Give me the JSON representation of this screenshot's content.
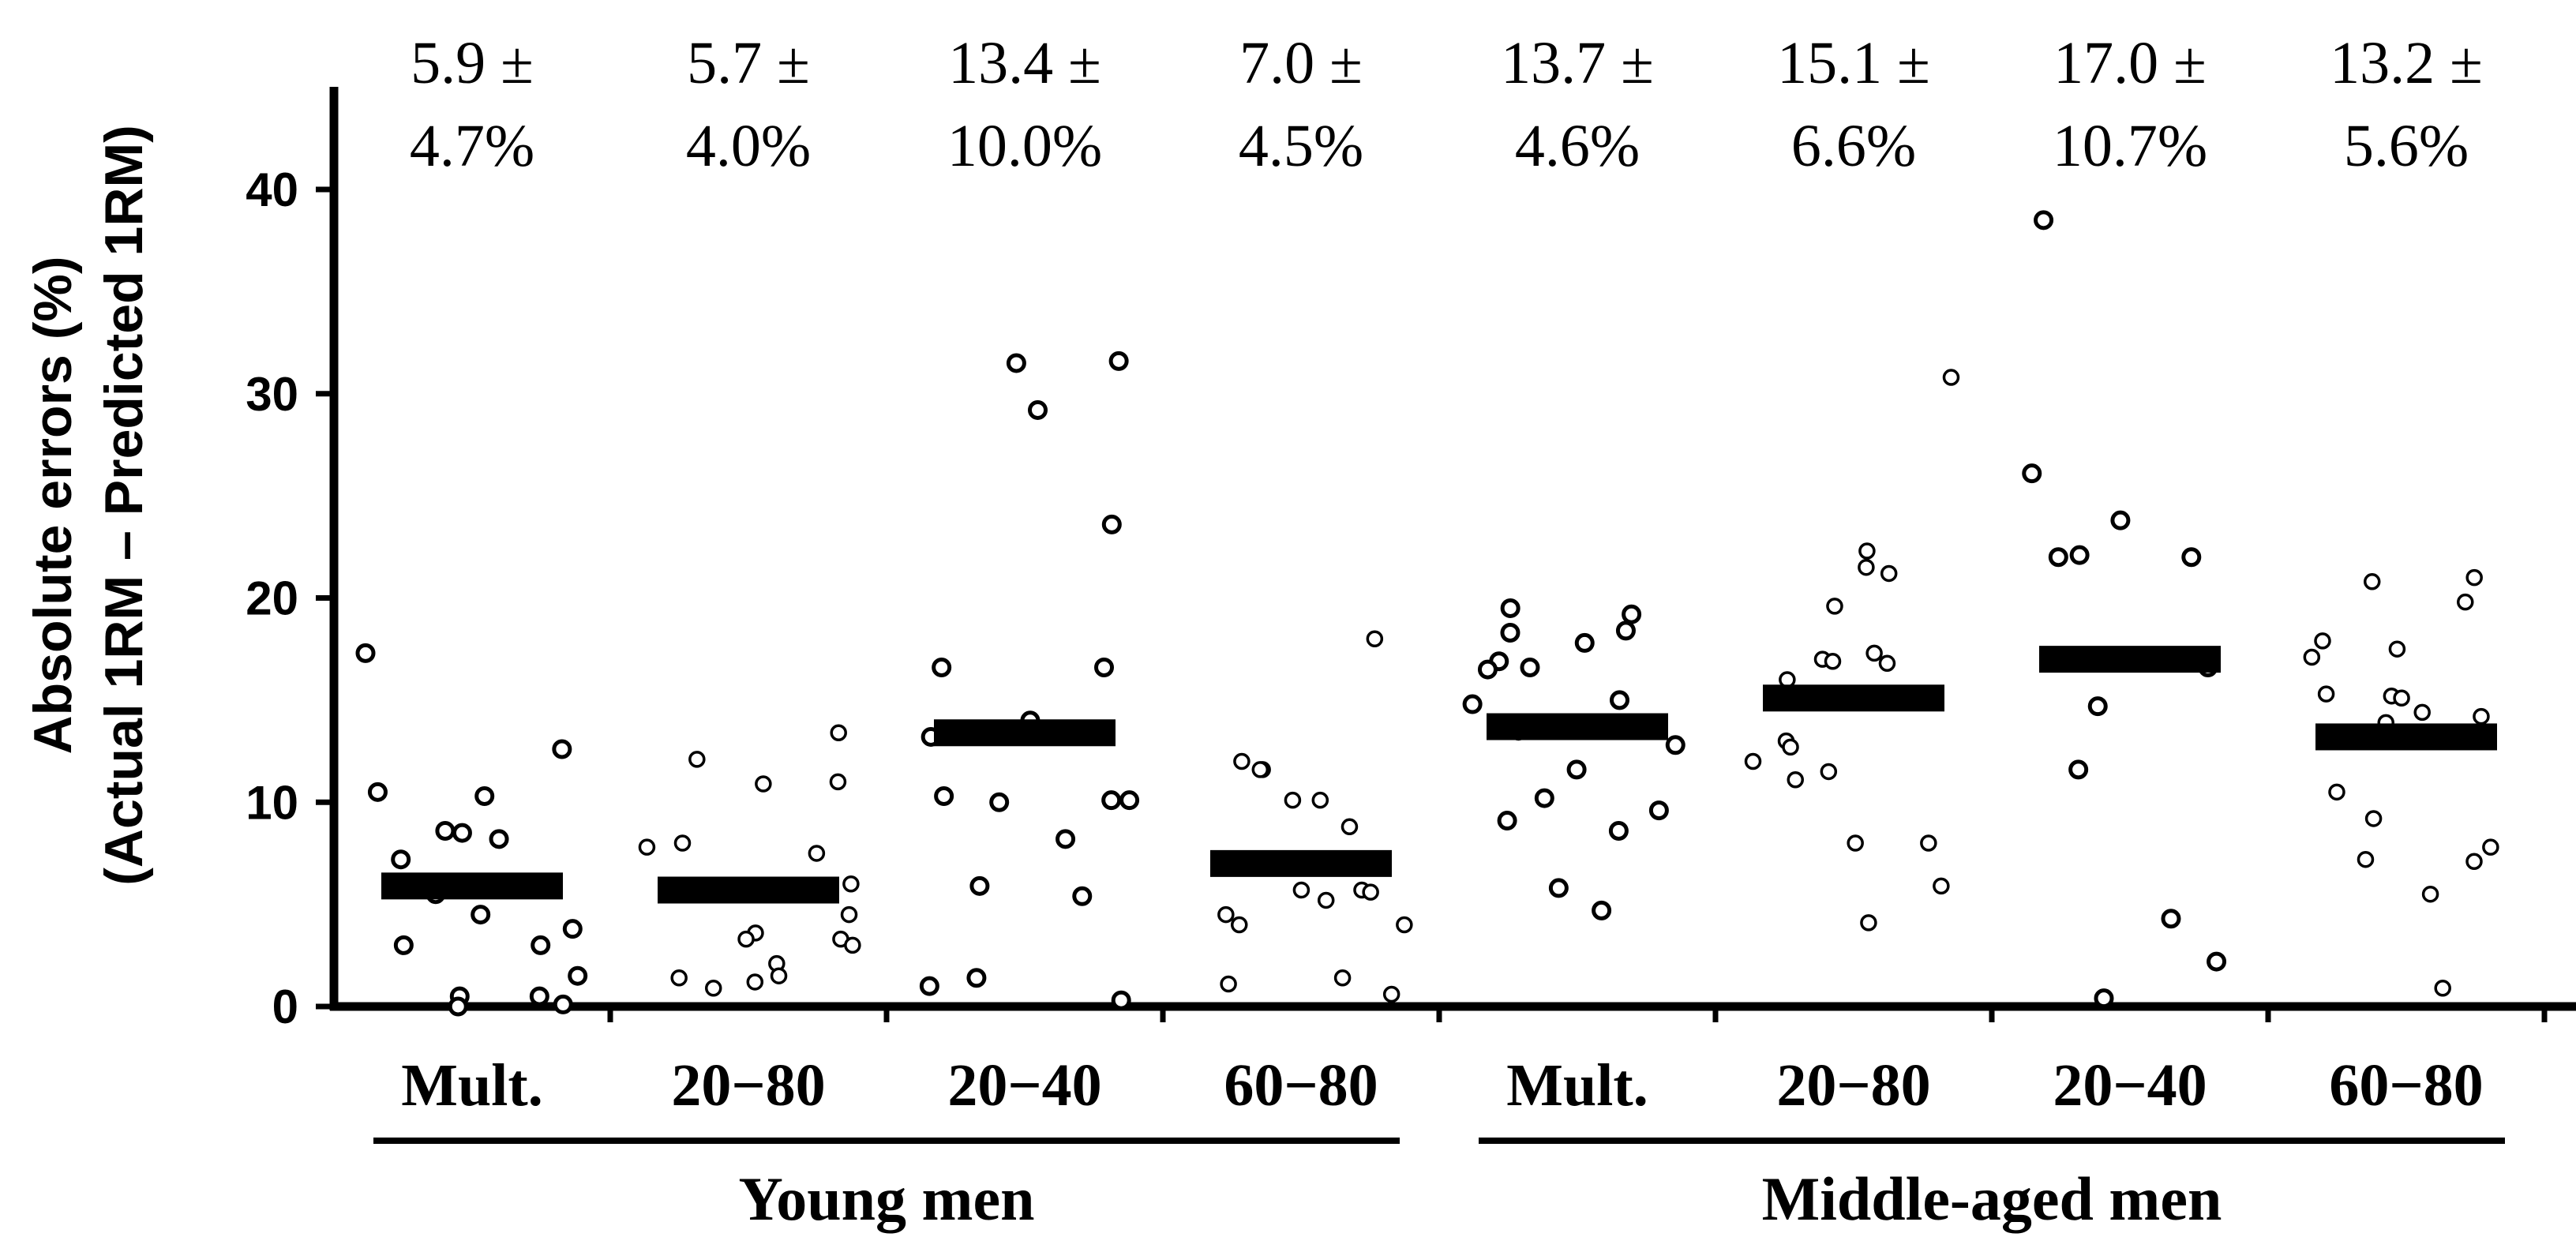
{
  "chart_data": {
    "type": "scatter",
    "title": "",
    "ylabel_line1": "Absolute errors (%)",
    "ylabel_line2": "(Actual 1RM – Predicted 1RM)",
    "ylim": [
      0,
      45
    ],
    "yticks": [
      0,
      10,
      20,
      30,
      40
    ],
    "groups": [
      {
        "label": "Young men",
        "categories": [
          0,
          1,
          2,
          3
        ]
      },
      {
        "label": "Middle-aged men",
        "categories": [
          4,
          5,
          6,
          7
        ]
      }
    ],
    "categories": [
      {
        "label": "Mult.",
        "mean": 5.9,
        "annotation": [
          "5.9 ±",
          "4.7%"
        ],
        "points": [
          17.3,
          12.6,
          10.5,
          10.3,
          8.6,
          8.5,
          8.2,
          7.2,
          5.5,
          4.5,
          3.8,
          3.0,
          3.0,
          1.5,
          0.5,
          0.5,
          0.1,
          0.0
        ]
      },
      {
        "label": "20−80",
        "mean": 5.7,
        "annotation": [
          "5.7 ±",
          "4.0%"
        ],
        "points": [
          13.4,
          12.1,
          11.0,
          10.9,
          8.0,
          7.8,
          7.5,
          6.0,
          4.5,
          3.6,
          3.3,
          3.3,
          3.0,
          2.1,
          1.5,
          1.4,
          1.2,
          0.9
        ]
      },
      {
        "label": "20−40",
        "mean": 13.4,
        "annotation": [
          "13.4 ±",
          "10.0%"
        ],
        "points": [
          31.6,
          31.5,
          29.2,
          23.6,
          16.6,
          16.6,
          14.0,
          13.2,
          10.3,
          10.1,
          10.1,
          10.0,
          8.2,
          5.9,
          5.4,
          1.4,
          1.0,
          0.3
        ]
      },
      {
        "label": "60−80",
        "mean": 7.0,
        "annotation": [
          "7.0 ±",
          "4.5%"
        ],
        "points": [
          18.0,
          12.0,
          11.6,
          11.6,
          10.1,
          10.1,
          8.8,
          7.1,
          5.7,
          5.7,
          5.6,
          5.2,
          4.5,
          4.0,
          4.0,
          1.4,
          1.1,
          0.6
        ]
      },
      {
        "label": "Mult.",
        "mean": 13.7,
        "annotation": [
          "13.7 ±",
          "4.6%"
        ],
        "points": [
          19.5,
          19.2,
          18.4,
          18.3,
          17.8,
          16.9,
          16.6,
          16.5,
          15.0,
          14.8,
          13.5,
          12.8,
          11.6,
          10.2,
          9.6,
          9.1,
          8.6,
          5.8,
          4.7
        ]
      },
      {
        "label": "20−80",
        "mean": 15.1,
        "annotation": [
          "15.1 ±",
          "6.6%"
        ],
        "points": [
          30.8,
          22.3,
          21.5,
          21.2,
          19.6,
          17.3,
          17.0,
          16.9,
          16.8,
          16.0,
          13.0,
          12.7,
          12.0,
          11.5,
          11.1,
          8.0,
          8.0,
          5.9,
          4.1
        ]
      },
      {
        "label": "20−40",
        "mean": 17.0,
        "annotation": [
          "17.0 ±",
          "10.7%"
        ],
        "points": [
          38.5,
          26.1,
          23.8,
          22.1,
          22.0,
          22.0,
          16.6,
          14.7,
          11.6,
          4.3,
          2.2,
          0.4
        ]
      },
      {
        "label": "60−80",
        "mean": 13.2,
        "annotation": [
          "13.2 ±",
          "5.6%"
        ],
        "points": [
          21.0,
          20.8,
          19.8,
          17.9,
          17.5,
          17.1,
          15.3,
          15.2,
          15.1,
          14.4,
          14.2,
          13.9,
          10.5,
          9.2,
          7.8,
          7.2,
          7.1,
          5.5,
          0.9
        ]
      }
    ]
  }
}
